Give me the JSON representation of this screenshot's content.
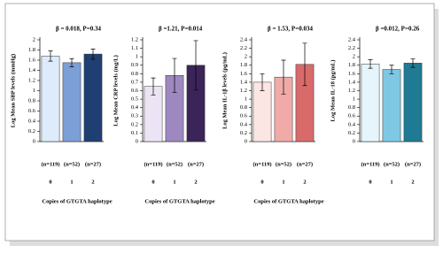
{
  "chart_data": [
    {
      "type": "bar",
      "annotation": "β = 0.018, P=0.34",
      "ylabel": "Log Mean SBP levels (mmHg)",
      "categories": [
        "0",
        "1",
        "2"
      ],
      "counts": [
        "(n=119)",
        "(n=52)",
        "(n=27)"
      ],
      "values": [
        1.68,
        1.55,
        1.72
      ],
      "errors": [
        0.1,
        0.08,
        0.1
      ],
      "colors": [
        "#ddebfb",
        "#7b9fd6",
        "#1f3f73"
      ],
      "ylim": [
        0,
        2
      ],
      "yticks": [
        0,
        0.2,
        0.4,
        0.6,
        0.8,
        1,
        1.2,
        1.4,
        1.6,
        1.8,
        2
      ],
      "xlabel": "Copies of GTGTA haplotype"
    },
    {
      "type": "bar",
      "annotation": "β =1.21, P=0.014",
      "ylabel": "Log Mean CRP levels (mg/L)",
      "categories": [
        "0",
        "1",
        "2"
      ],
      "counts": [
        "(n=119)",
        "(n=52)",
        "(n=27)"
      ],
      "values": [
        0.65,
        0.78,
        0.9
      ],
      "errors": [
        0.1,
        0.2,
        0.29
      ],
      "colors": [
        "#ece4f4",
        "#9d88c0",
        "#3b2458"
      ],
      "ylim": [
        0,
        1.2
      ],
      "yticks": [
        0,
        0.1,
        0.2,
        0.3,
        0.4,
        0.5,
        0.6,
        0.7,
        0.8,
        0.9,
        1,
        1.1,
        1.2
      ],
      "xlabel": "Copies of GTGTA haplotype"
    },
    {
      "type": "bar",
      "annotation": "β = 1.53, P=0.034",
      "ylabel": "Log Mean IL-1β levels (pg/mL)",
      "categories": [
        "0",
        "1",
        "2"
      ],
      "counts": [
        "(n=119)",
        "(n=52)",
        "(n=27)"
      ],
      "values": [
        1.4,
        1.52,
        1.82
      ],
      "errors": [
        0.2,
        0.4,
        0.5
      ],
      "colors": [
        "#fce6e4",
        "#f0aaa7",
        "#d96a6a"
      ],
      "ylim": [
        0,
        2.4
      ],
      "yticks": [
        0,
        0.2,
        0.4,
        0.6,
        0.8,
        1,
        1.2,
        1.4,
        1.6,
        1.8,
        2,
        2.2,
        2.4
      ],
      "xlabel": "Copies of GTGTA haplotype"
    },
    {
      "type": "bar",
      "annotation": "β =0.012, P=0.26",
      "ylabel": "Log Mean IL-18 (pg/mL)",
      "categories": [
        "0",
        "1",
        "2"
      ],
      "counts": [
        "(n=119)",
        "(n=52)",
        "(n=27)"
      ],
      "values": [
        1.83,
        1.7,
        1.85
      ],
      "errors": [
        0.1,
        0.1,
        0.1
      ],
      "colors": [
        "#e6f5fb",
        "#7ec8e3",
        "#1f7a93"
      ],
      "ylim": [
        0,
        2.4
      ],
      "yticks": [
        0,
        0.2,
        0.4,
        0.6,
        0.8,
        1,
        1.2,
        1.4,
        1.6,
        1.8,
        2,
        2.2,
        2.4
      ]
    }
  ]
}
